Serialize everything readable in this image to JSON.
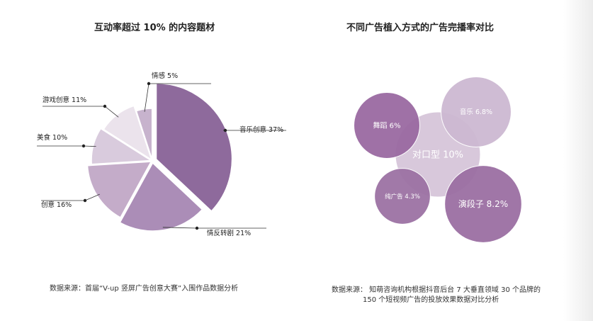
{
  "chart_data": [
    {
      "type": "pie",
      "title": "互动率超过 10% 的内容题材",
      "categories": [
        "音乐创意",
        "情反转剧",
        "创意",
        "美食",
        "游戏创意",
        "情感"
      ],
      "values": [
        37,
        21,
        16,
        10,
        11,
        5
      ],
      "labels": [
        "音乐创意 37%",
        "情反转剧 21%",
        "创意 16%",
        "美食 10%",
        "游戏创意 11%",
        "情感 5%"
      ],
      "colors": [
        "#8e6a9c",
        "#ab8db7",
        "#c4acc9",
        "#d9cbdd",
        "#ebe3ec",
        "#c7b3cd"
      ],
      "source": "数据来源：首届“V-up 竖屏广告创意大赛”入围作品数据分析"
    },
    {
      "type": "bubble",
      "title": "不同广告植入方式的广告完播率对比",
      "categories": [
        "对口型",
        "演段子",
        "音乐",
        "舞蹈",
        "纯广告"
      ],
      "values": [
        10,
        8.2,
        6.8,
        6,
        4.3
      ],
      "labels": [
        "对口型 10%",
        "演段子 8.2%",
        "音乐 6.8%",
        "舞蹈 6%",
        "纯广告 4.3%"
      ],
      "colors": [
        "#d6c6da",
        "#9b6fa3",
        "#cdb9d2",
        "#9a6aa2",
        "#9c72a4"
      ],
      "source_lines": [
        "数据来源：   知萌咨询机构根据抖音后台 7 大垂直领域 30 个品牌的",
        "150 个短视频广告的投放效果数据对比分析"
      ]
    }
  ]
}
